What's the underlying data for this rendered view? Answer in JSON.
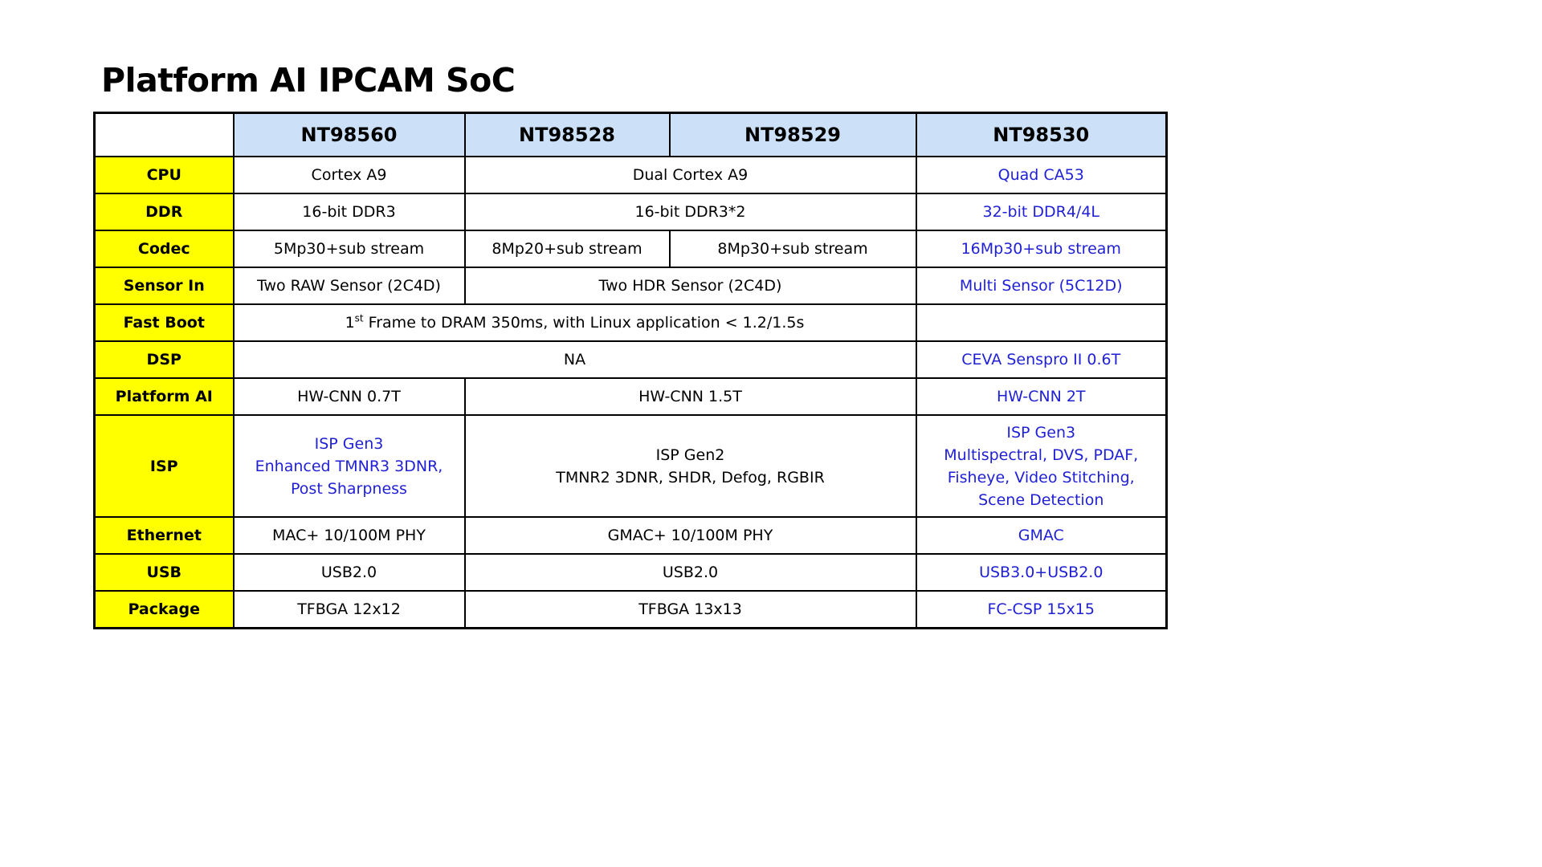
{
  "title": "Platform AI IPCAM SoC",
  "columns": [
    "NT98560",
    "NT98528",
    "NT98529",
    "NT98530"
  ],
  "rows": {
    "cpu": {
      "label": "CPU",
      "nt98560": "Cortex A9",
      "nt98528_29": "Dual Cortex A9",
      "nt98530": "Quad CA53"
    },
    "ddr": {
      "label": "DDR",
      "nt98560": "16-bit DDR3",
      "nt98528_29": "16-bit DDR3*2",
      "nt98530": "32-bit DDR4/4L"
    },
    "codec": {
      "label": "Codec",
      "nt98560": "5Mp30+sub stream",
      "nt98528": "8Mp20+sub stream",
      "nt98529": "8Mp30+sub stream",
      "nt98530": "16Mp30+sub stream"
    },
    "sensor_in": {
      "label": "Sensor In",
      "nt98560": "Two RAW Sensor (2C4D)",
      "nt98528_29": "Two HDR Sensor (2C4D)",
      "nt98530": "Multi Sensor (5C12D)"
    },
    "fast_boot": {
      "label": "Fast Boot",
      "prefix": "1",
      "superscript": "st",
      "text": " Frame to DRAM 350ms, with Linux application < 1.2/1.5s",
      "nt98530": ""
    },
    "dsp": {
      "label": "DSP",
      "nt98560_29": "NA",
      "nt98530": "CEVA Senspro II  0.6T"
    },
    "platform_ai": {
      "label": "Platform AI",
      "nt98560": "HW-CNN 0.7T",
      "nt98528_29": "HW-CNN 1.5T",
      "nt98530": "HW-CNN 2T"
    },
    "isp": {
      "label": "ISP",
      "nt98560": [
        "ISP Gen3",
        "Enhanced TMNR3 3DNR,",
        "Post Sharpness"
      ],
      "nt98528_29": [
        "ISP Gen2",
        "TMNR2 3DNR, SHDR, Defog, RGBIR"
      ],
      "nt98530": [
        "ISP Gen3",
        "Multispectral, DVS, PDAF,",
        "Fisheye, Video Stitching,",
        "Scene Detection"
      ]
    },
    "ethernet": {
      "label": "Ethernet",
      "nt98560": "MAC+ 10/100M PHY",
      "nt98528_29": "GMAC+ 10/100M PHY",
      "nt98530": "GMAC"
    },
    "usb": {
      "label": "USB",
      "nt98560": "USB2.0",
      "nt98528_29": "USB2.0",
      "nt98530": "USB3.0+USB2.0"
    },
    "package": {
      "label": "Package",
      "nt98560": "TFBGA 12x12",
      "nt98528_29": "TFBGA 13x13",
      "nt98530": "FC-CSP 15x15"
    }
  },
  "colors": {
    "header_bg": "#cce0f7",
    "rowhead_bg": "#ffff00",
    "highlight_text": "#1f1fd6",
    "border": "#000000"
  }
}
